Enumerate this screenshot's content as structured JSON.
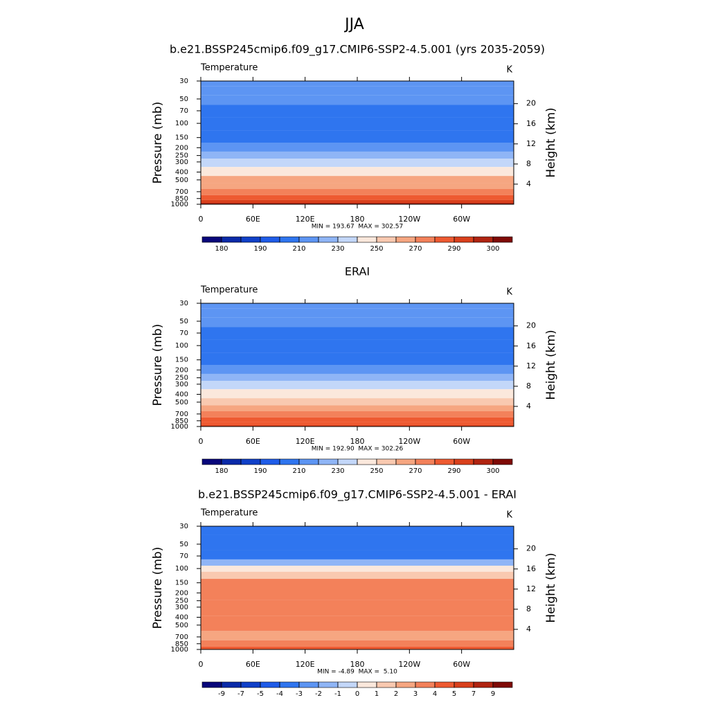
{
  "title": "JJA",
  "chart_data": [
    {
      "type": "contour",
      "title": "b.e21.BSSP245cmip6.f09_g17.CMIP6-SSP2-4.5.001 (yrs 2035-2059)",
      "subtitle": "Temperature",
      "units": "K",
      "ylabel": "Pressure (mb)",
      "y2label": "Height (km)",
      "annotation": "MIN = 193.67  MAX = 302.57",
      "xlim": [
        0,
        360
      ],
      "xticks": [
        0,
        {
          "value": 60,
          "label": "60E"
        },
        {
          "value": 120,
          "label": "120E"
        },
        180,
        {
          "value": 240,
          "label": "120W"
        },
        {
          "value": 300,
          "label": "60W"
        }
      ],
      "ylim": [
        1000,
        30
      ],
      "log_y": true,
      "yticks": [
        30,
        50,
        70,
        100,
        150,
        200,
        250,
        300,
        400,
        500,
        700,
        850,
        1000
      ],
      "y2lim": [
        0,
        24.5
      ],
      "y2ticks": [
        4,
        8,
        12,
        16,
        20
      ],
      "pressure": [
        30,
        40,
        50,
        70,
        100,
        150,
        200,
        250,
        300,
        400,
        500,
        600,
        700,
        850,
        925,
        1000
      ],
      "values": [
        218,
        215,
        212,
        206,
        203,
        208,
        217,
        226,
        235,
        248,
        260,
        268,
        275,
        284,
        290,
        296
      ],
      "colorbar": {
        "levels": [
          180,
          185,
          190,
          200,
          210,
          220,
          230,
          240,
          250,
          260,
          270,
          280,
          290,
          295,
          300
        ],
        "ticks": [
          180,
          190,
          210,
          230,
          250,
          270,
          290,
          300
        ],
        "colors": [
          "#08067a",
          "#0a2aa8",
          "#1040c8",
          "#1f5ce8",
          "#2f75ef",
          "#5d95f3",
          "#8fb5f6",
          "#c3d7f9",
          "#fbe8dc",
          "#f9c9b0",
          "#f6a681",
          "#f3815a",
          "#ee5a31",
          "#d9401c",
          "#b02411",
          "#7f0a06"
        ]
      }
    },
    {
      "type": "contour",
      "title": "ERAI",
      "subtitle": "Temperature",
      "units": "K",
      "ylabel": "Pressure (mb)",
      "y2label": "Height (km)",
      "annotation": "MIN = 192.90  MAX = 302.26",
      "xlim": [
        0,
        360
      ],
      "xticks": [
        0,
        {
          "value": 60,
          "label": "60E"
        },
        {
          "value": 120,
          "label": "120E"
        },
        180,
        {
          "value": 240,
          "label": "120W"
        },
        {
          "value": 300,
          "label": "60W"
        }
      ],
      "ylim": [
        1000,
        30
      ],
      "log_y": true,
      "yticks": [
        30,
        50,
        70,
        100,
        150,
        200,
        250,
        300,
        400,
        500,
        700,
        850,
        1000
      ],
      "y2lim": [
        0,
        24.5
      ],
      "y2ticks": [
        4,
        8,
        12,
        16,
        20
      ],
      "pressure": [
        30,
        40,
        50,
        70,
        100,
        150,
        200,
        250,
        300,
        400,
        500,
        600,
        700,
        850,
        925,
        1000
      ],
      "values": [
        218,
        215,
        212,
        206,
        203,
        207,
        214,
        222,
        232,
        245,
        257,
        265,
        273,
        282,
        287,
        292
      ],
      "colorbar": {
        "levels": [
          180,
          185,
          190,
          200,
          210,
          220,
          230,
          240,
          250,
          260,
          270,
          280,
          290,
          295,
          300
        ],
        "ticks": [
          180,
          190,
          210,
          230,
          250,
          270,
          290,
          300
        ],
        "colors": [
          "#08067a",
          "#0a2aa8",
          "#1040c8",
          "#1f5ce8",
          "#2f75ef",
          "#5d95f3",
          "#8fb5f6",
          "#c3d7f9",
          "#fbe8dc",
          "#f9c9b0",
          "#f6a681",
          "#f3815a",
          "#ee5a31",
          "#d9401c",
          "#b02411",
          "#7f0a06"
        ]
      }
    },
    {
      "type": "contour",
      "title": "b.e21.BSSP245cmip6.f09_g17.CMIP6-SSP2-4.5.001 - ERAI",
      "subtitle": "Temperature",
      "units": "K",
      "ylabel": "Pressure (mb)",
      "y2label": "Height (km)",
      "annotation": "MIN = -4.89  MAX =  5.10",
      "xlim": [
        0,
        360
      ],
      "xticks": [
        0,
        {
          "value": 60,
          "label": "60E"
        },
        {
          "value": 120,
          "label": "120E"
        },
        180,
        {
          "value": 240,
          "label": "120W"
        },
        {
          "value": 300,
          "label": "60W"
        }
      ],
      "ylim": [
        1000,
        30
      ],
      "log_y": true,
      "yticks": [
        30,
        50,
        70,
        100,
        150,
        200,
        250,
        300,
        400,
        500,
        700,
        850,
        1000
      ],
      "y2lim": [
        0,
        24.5
      ],
      "y2ticks": [
        4,
        8,
        12,
        16,
        20
      ],
      "pressure": [
        30,
        50,
        70,
        85,
        100,
        120,
        150,
        200,
        300,
        500,
        700,
        850,
        1000
      ],
      "values": [
        -3.5,
        -3.5,
        -3.2,
        -1.5,
        0.5,
        1.5,
        3.5,
        3.5,
        3.5,
        3.5,
        2.5,
        3.5,
        4.5
      ],
      "colorbar": {
        "levels": [
          -9,
          -7,
          -5,
          -4,
          -3,
          -2,
          -1,
          0,
          1,
          2,
          3,
          4,
          5,
          7,
          9
        ],
        "ticks": [
          -9,
          -7,
          -5,
          -4,
          -3,
          -2,
          -1,
          0,
          1,
          2,
          3,
          4,
          5,
          7,
          9
        ],
        "colors": [
          "#08067a",
          "#0a2aa8",
          "#1040c8",
          "#1f5ce8",
          "#2f75ef",
          "#5d95f3",
          "#8fb5f6",
          "#c3d7f9",
          "#fbe8dc",
          "#f9c9b0",
          "#f6a681",
          "#f3815a",
          "#ee5a31",
          "#d9401c",
          "#b02411",
          "#7f0a06"
        ]
      }
    }
  ]
}
